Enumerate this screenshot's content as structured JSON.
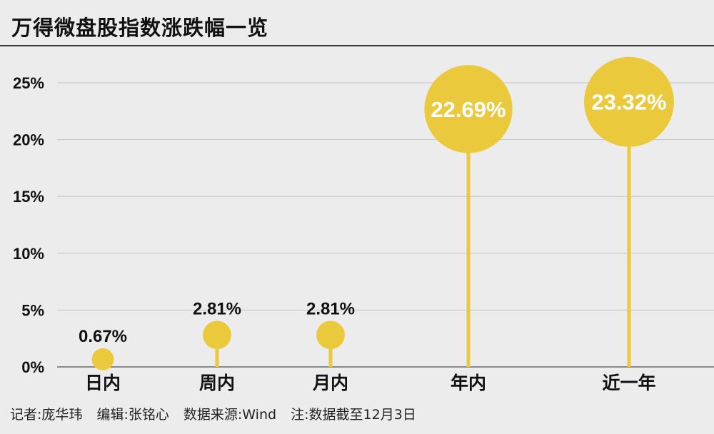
{
  "title": "万得微盘股指数涨跌幅一览",
  "footer": {
    "author": "记者:庞华玮",
    "editor": "编辑:张铭心",
    "source": "数据来源:Wind",
    "note": "注:数据截至12月3日"
  },
  "colors": {
    "accent": "#ebc93d",
    "grid": "#c4c4c4",
    "axis": "#666666",
    "bubble_text_light": "#ffffff",
    "bubble_text_dark": "#111111"
  },
  "chart_data": {
    "type": "lollipop",
    "title": "万得微盘股指数涨跌幅一览",
    "categories": [
      "日内",
      "周内",
      "月内",
      "年内",
      "近一年"
    ],
    "values": [
      0.67,
      2.81,
      2.81,
      22.69,
      23.32
    ],
    "labels": [
      "0.67%",
      "2.81%",
      "2.81%",
      "22.69%",
      "23.32%"
    ],
    "unit": "%",
    "ylim": [
      0,
      25
    ],
    "yticks": [
      0,
      5,
      10,
      15,
      20,
      25
    ],
    "ytick_labels": [
      "0%",
      "5%",
      "10%",
      "15%",
      "20%",
      "25%"
    ],
    "grid": true,
    "marker_size": "proportional to value",
    "label_position": [
      "above",
      "above",
      "above",
      "inside",
      "inside"
    ]
  }
}
